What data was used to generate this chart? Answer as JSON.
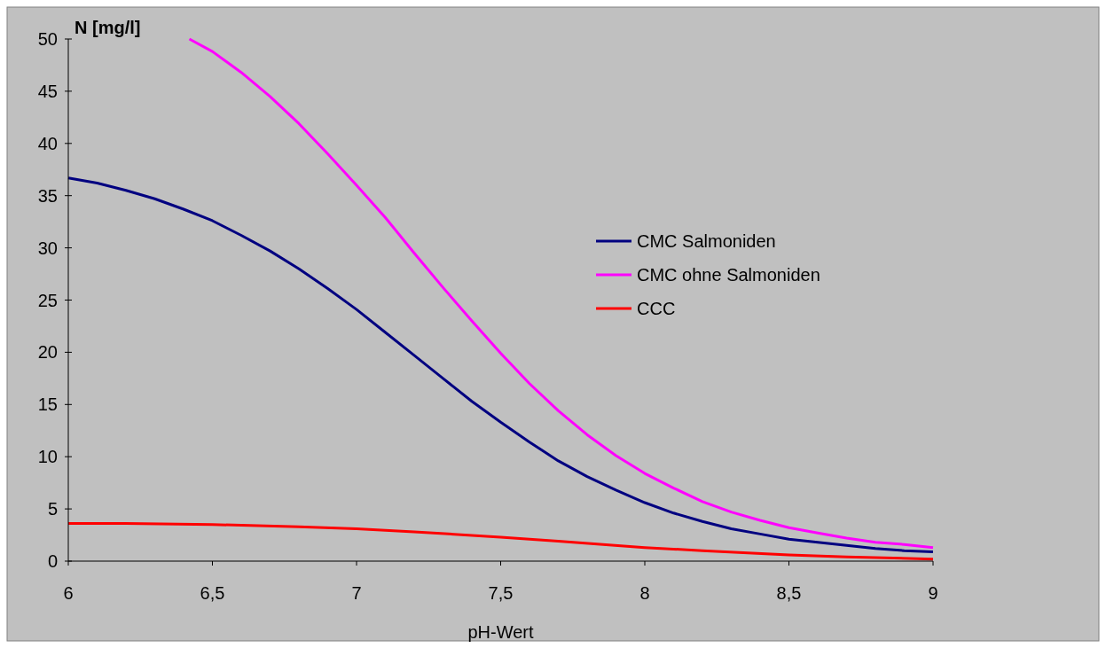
{
  "chart_data": {
    "type": "line",
    "xlabel": "pH-Wert",
    "ylabel": "N [mg/l]",
    "x": [
      6,
      6.1,
      6.2,
      6.3,
      6.4,
      6.5,
      6.6,
      6.7,
      6.8,
      6.9,
      7,
      7.1,
      7.2,
      7.3,
      7.4,
      7.5,
      7.6,
      7.7,
      7.8,
      7.9,
      8,
      8.1,
      8.2,
      8.3,
      8.4,
      8.5,
      8.6,
      8.7,
      8.8,
      8.9,
      9
    ],
    "series": [
      {
        "name": "CMC Salmoniden",
        "color": "#000080",
        "values": [
          36.7,
          36.2,
          35.5,
          34.7,
          33.7,
          32.6,
          31.2,
          29.7,
          28.0,
          26.1,
          24.1,
          21.9,
          19.7,
          17.5,
          15.3,
          13.3,
          11.4,
          9.6,
          8.1,
          6.8,
          5.6,
          4.6,
          3.8,
          3.1,
          2.6,
          2.1,
          1.8,
          1.5,
          1.2,
          1.0,
          0.9
        ]
      },
      {
        "name": "CMC ohne Salmoniden",
        "color": "#ff00ff",
        "x": [
          6.42,
          6.5,
          6.6,
          6.7,
          6.8,
          6.9,
          7,
          7.1,
          7.2,
          7.3,
          7.4,
          7.5,
          7.6,
          7.7,
          7.8,
          7.9,
          8,
          8.1,
          8.2,
          8.3,
          8.4,
          8.5,
          8.6,
          8.7,
          8.8,
          8.9,
          9
        ],
        "values": [
          50,
          48.8,
          46.8,
          44.5,
          41.9,
          39.0,
          36.0,
          32.9,
          29.5,
          26.2,
          23.0,
          19.9,
          17.0,
          14.4,
          12.1,
          10.1,
          8.4,
          7.0,
          5.7,
          4.7,
          3.9,
          3.2,
          2.7,
          2.2,
          1.8,
          1.6,
          1.3
        ]
      },
      {
        "name": "CCC",
        "color": "#ff0000",
        "x": [
          6,
          6.2,
          6.5,
          6.8,
          7,
          7.2,
          7.5,
          7.7,
          8,
          8.2,
          8.5,
          8.7,
          9
        ],
        "values": [
          3.6,
          3.6,
          3.5,
          3.3,
          3.1,
          2.8,
          2.3,
          1.9,
          1.3,
          1.0,
          0.6,
          0.4,
          0.2
        ]
      }
    ],
    "xlim": [
      6,
      9
    ],
    "xticks": [
      6,
      {
        "value": 6.5,
        "label": "6,5"
      },
      7,
      {
        "value": 7.5,
        "label": "7,5"
      },
      8,
      {
        "value": 8.5,
        "label": "8,5"
      },
      9
    ],
    "ylim": [
      0,
      50
    ],
    "yticks": [
      0,
      5,
      10,
      15,
      20,
      25,
      30,
      35,
      40,
      45,
      50
    ],
    "grid": false,
    "legend": "right",
    "marker": "none",
    "line_style": "solid"
  }
}
